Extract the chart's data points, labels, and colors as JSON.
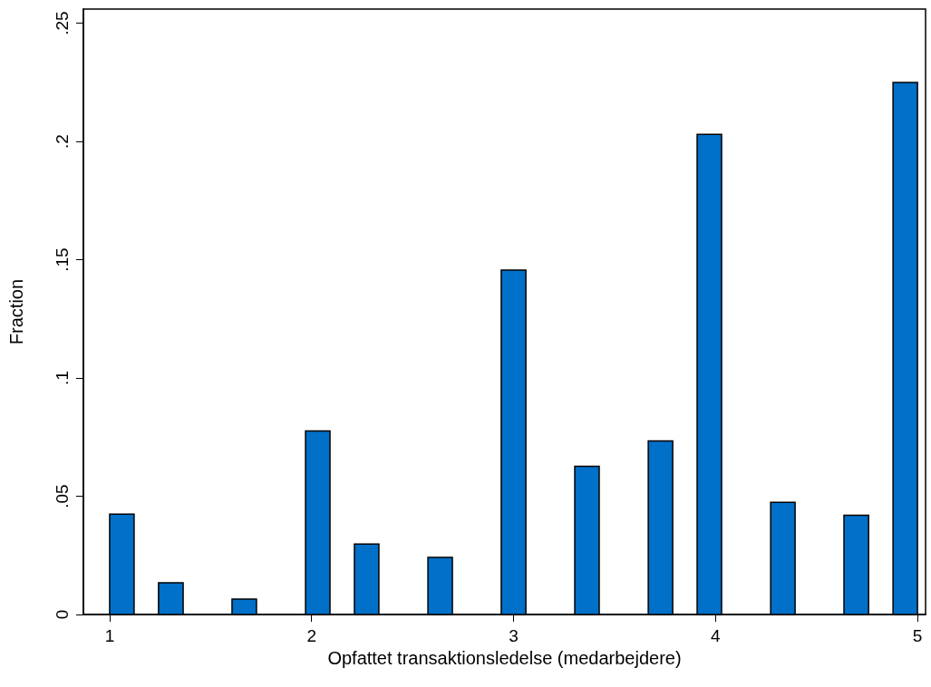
{
  "chart_data": {
    "type": "histogram",
    "xlabel": "Opfattet transaktionsledelse (medarbejdere)",
    "ylabel": "Fraction",
    "color": "#0070c8",
    "bins": [
      1,
      1.121,
      1.242,
      1.364,
      1.485,
      1.606,
      1.727,
      1.848,
      1.97,
      2.091,
      2.212,
      2.333,
      2.455,
      2.576,
      2.697,
      2.818,
      2.939,
      3.061,
      3.182,
      3.303,
      3.424,
      3.545,
      3.667,
      3.788,
      3.909,
      4.03,
      4.152,
      4.273,
      4.394,
      4.515,
      4.636,
      4.758,
      4.879,
      5
    ],
    "values": [
      0.0424,
      0,
      0.0134,
      0,
      0,
      0.0065,
      0,
      0,
      0.0776,
      0,
      0.0298,
      0,
      0,
      0.0241,
      0,
      0,
      0.1456,
      0,
      0,
      0.0627,
      0,
      0,
      0.0734,
      0,
      0.203,
      0,
      0,
      0.0474,
      0,
      0,
      0.042,
      0,
      0.225
    ],
    "xlim": [
      0.87,
      5.04
    ],
    "xticks": [
      1,
      2,
      3,
      4,
      5
    ],
    "ylim": [
      0,
      0.256
    ],
    "yticks": [
      0,
      {
        "value": 0.05,
        "label": ".05"
      },
      {
        "value": 0.1,
        "label": ".1"
      },
      {
        "value": 0.15,
        "label": ".15"
      },
      {
        "value": 0.2,
        "label": ".2"
      },
      {
        "value": 0.25,
        "label": ".25"
      }
    ],
    "grid": false
  }
}
